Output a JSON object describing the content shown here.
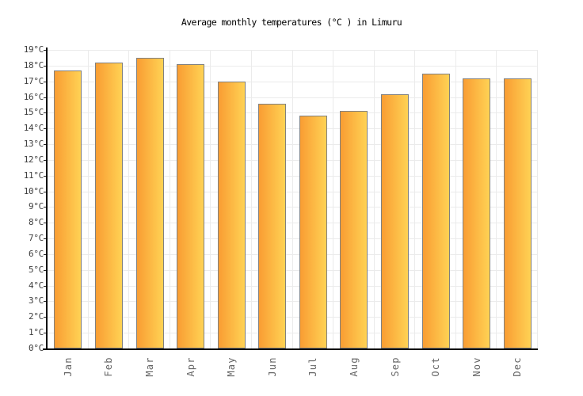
{
  "title": "Average monthly temperatures (°C ) in Limuru",
  "chart_data": {
    "type": "bar",
    "title": "Average monthly temperatures (°C ) in Limuru",
    "categories": [
      "Jan",
      "Feb",
      "Mar",
      "Apr",
      "May",
      "Jun",
      "Jul",
      "Aug",
      "Sep",
      "Oct",
      "Nov",
      "Dec"
    ],
    "values": [
      17.7,
      18.2,
      18.5,
      18.1,
      17.0,
      15.6,
      14.8,
      15.1,
      16.2,
      17.5,
      17.2,
      17.2
    ],
    "xlabel": "",
    "ylabel": "",
    "ylim": [
      0,
      19
    ],
    "ytick_step": 1,
    "ytick_suffix": "°C",
    "grid": "on",
    "legend": "none",
    "colors": {
      "bar_gradient_left": "#f99d33",
      "bar_gradient_right": "#ffd254",
      "bar_border": "#808080",
      "gridline": "#ebebeb",
      "axis": "#000000",
      "ytick_label": "#3d3d3d",
      "xtick_label": "#666666",
      "title": "#000000",
      "background": "#ffffff"
    }
  }
}
